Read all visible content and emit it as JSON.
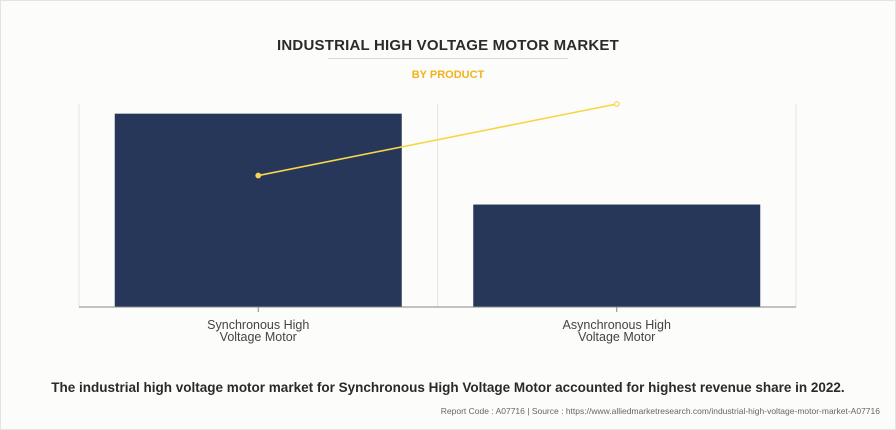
{
  "chart_data": {
    "type": "bar",
    "title": "INDUSTRIAL HIGH VOLTAGE MOTOR MARKET",
    "subtitle": "BY PRODUCT",
    "categories": [
      [
        "Synchronous High",
        "Voltage Motor"
      ],
      [
        "Asynchronous High",
        "Voltage Motor"
      ]
    ],
    "series": [
      {
        "values": [
          100,
          53
        ]
      },
      {
        "type": "line",
        "values": [
          68,
          105
        ]
      }
    ],
    "ylim": [
      0,
      105
    ],
    "grid": false,
    "colors": {
      "bar": "#26375a",
      "line": "#f8d548",
      "axis": "#888888",
      "gridline": "#e6e6e6"
    }
  },
  "caption": "The industrial high voltage motor market for Synchronous High Voltage Motor accounted for highest revenue share in 2022.",
  "source": "Report Code : A07716  |  Source : https://www.alliedmarketresearch.com/industrial-high-voltage-motor-market-A07716"
}
